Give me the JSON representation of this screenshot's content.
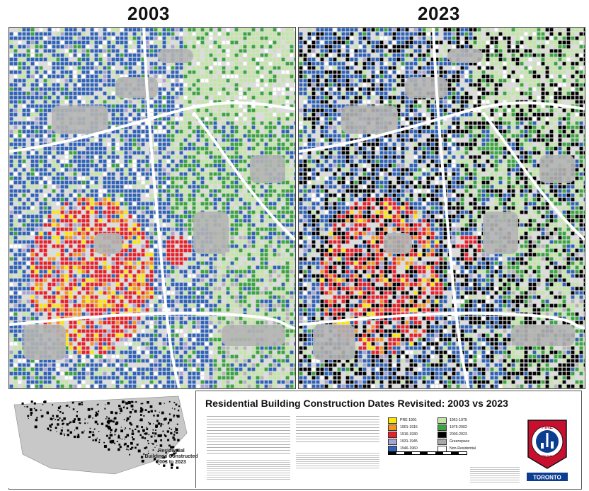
{
  "header": {
    "year_left": "2003",
    "year_right": "2023"
  },
  "map": {
    "title": "Residential Building Construction Dates Revisited: 2003 vs 2023",
    "inset_caption_line1": "Residential",
    "inset_caption_line2": "Buildings Constructed",
    "inset_caption_line3": "2003 to 2023",
    "legend": [
      {
        "label": "PRE 1901",
        "color": "#ffe600"
      },
      {
        "label": "1901-1915",
        "color": "#f7941d"
      },
      {
        "label": "1916-1930",
        "color": "#e8202a"
      },
      {
        "label": "1931-1945",
        "color": "#a9a3d1"
      },
      {
        "label": "1946-1960",
        "color": "#2f63b8"
      },
      {
        "label": "1961-1975",
        "color": "#c3e6a6"
      },
      {
        "label": "1976-2002",
        "color": "#3aa53f"
      },
      {
        "label": "2003-2023",
        "color": "#000000"
      },
      {
        "label": "Greenspace",
        "color": "#a8a8a8"
      },
      {
        "label": "Non-Residential",
        "color": "#ffffff"
      }
    ],
    "logo_text_top": "FIRE",
    "logo_text_bottom": "SERVICES",
    "logo_city": "TORONTO"
  }
}
